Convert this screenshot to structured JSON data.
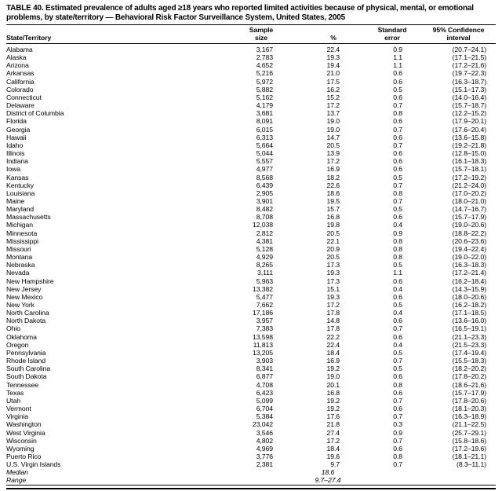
{
  "document": {
    "title": "TABLE 40. Estimated prevalence of adults aged ≥18 years who reported limited activities because of physical, mental, or emotional problems, by state/territory — Behavioral Risk Factor Surveillance System, United States, 2005"
  },
  "table": {
    "columns": [
      {
        "key": "state",
        "label": "State/Territory"
      },
      {
        "key": "sample",
        "label": "Sample\nsize"
      },
      {
        "key": "pct",
        "label": "%"
      },
      {
        "key": "se",
        "label": "Standard\nerror"
      },
      {
        "key": "ci",
        "label": "95% Confidence\ninterval"
      }
    ],
    "rows": [
      [
        "Alabama",
        "3,167",
        "22.4",
        "0.9",
        "(20.7–24.1)"
      ],
      [
        "Alaska",
        "2,783",
        "19.3",
        "1.1",
        "(17.1–21.5)"
      ],
      [
        "Arizona",
        "4,652",
        "19.4",
        "1.1",
        "(17.2–21.6)"
      ],
      [
        "Arkansas",
        "5,216",
        "21.0",
        "0.6",
        "(19.7–22.3)"
      ],
      [
        "California",
        "5,972",
        "17.5",
        "0.6",
        "(16.3–18.7)"
      ],
      [
        "Colorado",
        "5,882",
        "16.2",
        "0.5",
        "(15.1–17.3)"
      ],
      [
        "Connecticut",
        "5,162",
        "15.2",
        "0.6",
        "(14.0–16.4)"
      ],
      [
        "Delaware",
        "4,179",
        "17.2",
        "0.7",
        "(15.7–18.7)"
      ],
      [
        "District of Columbia",
        "3,681",
        "13.7",
        "0.8",
        "(12.2–15.2)"
      ],
      [
        "Florida",
        "8,091",
        "19.0",
        "0.6",
        "(17.9–20.1)"
      ],
      [
        "Georgia",
        "6,015",
        "19.0",
        "0.7",
        "(17.6–20.4)"
      ],
      [
        "Hawaii",
        "6,313",
        "14.7",
        "0.6",
        "(13.6–15.8)"
      ],
      [
        "Idaho",
        "5,664",
        "20.5",
        "0.7",
        "(19.2–21.8)"
      ],
      [
        "Illinois",
        "5,044",
        "13.9",
        "0.6",
        "(12.8–15.0)"
      ],
      [
        "Indiana",
        "5,557",
        "17.2",
        "0.6",
        "(16.1–18.3)"
      ],
      [
        "Iowa",
        "4,977",
        "16.9",
        "0.6",
        "(15.7–18.1)"
      ],
      [
        "Kansas",
        "8,568",
        "18.2",
        "0.5",
        "(17.2–19.2)"
      ],
      [
        "Kentucky",
        "6,439",
        "22.6",
        "0.7",
        "(21.2–24.0)"
      ],
      [
        "Louisiana",
        "2,905",
        "18.6",
        "0.8",
        "(17.0–20.2)"
      ],
      [
        "Maine",
        "3,901",
        "19.5",
        "0.7",
        "(18.0–21.0)"
      ],
      [
        "Maryland",
        "8,482",
        "15.7",
        "0.5",
        "(14.7–16.7)"
      ],
      [
        "Massachusetts",
        "8,708",
        "16.8",
        "0.6",
        "(15.7–17.9)"
      ],
      [
        "Michigan",
        "12,038",
        "19.8",
        "0.4",
        "(19.0–20.6)"
      ],
      [
        "Minnesota",
        "2,812",
        "20.5",
        "0.9",
        "(18.8–22.2)"
      ],
      [
        "Mississippi",
        "4,381",
        "22.1",
        "0.8",
        "(20.6–23.6)"
      ],
      [
        "Missouri",
        "5,128",
        "20.9",
        "0.8",
        "(19.4–22.4)"
      ],
      [
        "Montana",
        "4,929",
        "20.5",
        "0.8",
        "(19.0–22.0)"
      ],
      [
        "Nebraska",
        "8,265",
        "17.3",
        "0.5",
        "(16.3–18.3)"
      ],
      [
        "Nevada",
        "3,111",
        "19.3",
        "1.1",
        "(17.2–21.4)"
      ],
      [
        "New Hampshire",
        "5,963",
        "17.3",
        "0.6",
        "(16.2–18.4)"
      ],
      [
        "New Jersey",
        "13,382",
        "15.1",
        "0.4",
        "(14.3–15.9)"
      ],
      [
        "New Mexico",
        "5,477",
        "19.3",
        "0.6",
        "(18.0–20.6)"
      ],
      [
        "New York",
        "7,662",
        "17.2",
        "0.5",
        "(16.2–18.2)"
      ],
      [
        "North Carolina",
        "17,186",
        "17.8",
        "0.4",
        "(17.1–18.5)"
      ],
      [
        "North Dakota",
        "3,957",
        "14.8",
        "0.6",
        "(13.6–16.0)"
      ],
      [
        "Ohio",
        "7,383",
        "17.8",
        "0.7",
        "(16.5–19.1)"
      ],
      [
        "Oklahoma",
        "13,598",
        "22.2",
        "0.6",
        "(21.1–23.3)"
      ],
      [
        "Oregon",
        "11,813",
        "22.4",
        "0.4",
        "(21.5–23.3)"
      ],
      [
        "Pennsylvania",
        "13,205",
        "18.4",
        "0.5",
        "(17.4–19.4)"
      ],
      [
        "Rhode Island",
        "3,903",
        "16.9",
        "0.7",
        "(15.5–18.3)"
      ],
      [
        "South Carolina",
        "8,341",
        "19.2",
        "0.5",
        "(18.2–20.2)"
      ],
      [
        "South Dakota",
        "6,877",
        "19.0",
        "0.6",
        "(17.8–20.2)"
      ],
      [
        "Tennessee",
        "4,708",
        "20.1",
        "0.8",
        "(18.6–21.6)"
      ],
      [
        "Texas",
        "6,423",
        "16.8",
        "0.6",
        "(15.7–17.9)"
      ],
      [
        "Utah",
        "5,099",
        "19.2",
        "0.7",
        "(17.8–20.6)"
      ],
      [
        "Vermont",
        "6,704",
        "19.2",
        "0.6",
        "(18.1–20.3)"
      ],
      [
        "Virginia",
        "5,384",
        "17.6",
        "0.7",
        "(16.3–18.9)"
      ],
      [
        "Washington",
        "23,042",
        "21.8",
        "0.3",
        "(21.1–22.5)"
      ],
      [
        "West Virginia",
        "3,546",
        "27.4",
        "0.9",
        "(25.7–29.1)"
      ],
      [
        "Wisconsin",
        "4,802",
        "17.2",
        "0.7",
        "(15.8–18.6)"
      ],
      [
        "Wyoming",
        "4,969",
        "18.4",
        "0.6",
        "(17.2–19.6)"
      ],
      [
        "Puerto Rico",
        "3,776",
        "19.6",
        "0.8",
        "(18.1–21.1)"
      ],
      [
        "U.S. Virgin Islands",
        "2,381",
        "9.7",
        "0.7",
        "(8.3–11.1)"
      ]
    ],
    "summary_rows": [
      {
        "label": "Median",
        "value": "18.6"
      },
      {
        "label": "Range",
        "value": "9.7–27.4"
      }
    ]
  }
}
